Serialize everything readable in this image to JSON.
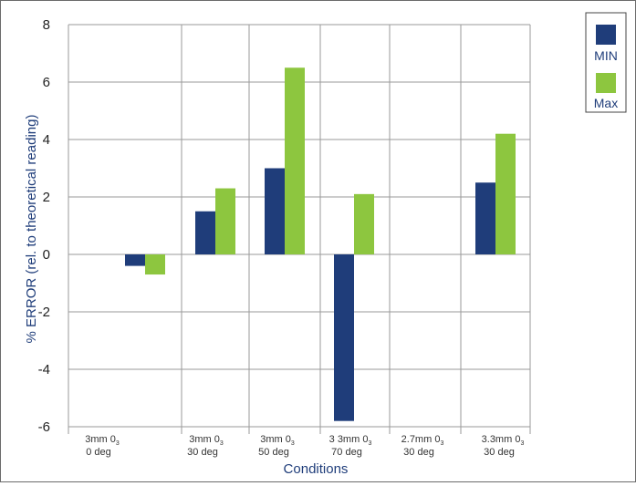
{
  "chart_data": {
    "type": "bar",
    "categories": [
      {
        "line1": "3mm 0",
        "sub": "3",
        "line2": "0 deg"
      },
      {
        "line1": "3mm 0",
        "sub": "3",
        "line2": "30 deg"
      },
      {
        "line1": "3mm 0",
        "sub": "3",
        "line2": "50 deg"
      },
      {
        "line1": "3 3mm 0",
        "sub": "3",
        "line2": "70 deg"
      },
      {
        "line1": "2.7mm 0",
        "sub": "3",
        "line2": "30 deg"
      },
      {
        "line1": "3.3mm 0",
        "sub": "3",
        "line2": "30 deg"
      }
    ],
    "series": [
      {
        "name": "MIN",
        "color": "#1f3d7a",
        "values": [
          -0.4,
          1.5,
          3.0,
          -5.8,
          0,
          2.5
        ]
      },
      {
        "name": "Max",
        "color": "#8dc63f",
        "values": [
          -0.7,
          2.3,
          6.5,
          2.1,
          0,
          4.2
        ]
      }
    ],
    "xlabel": "Conditions",
    "ylabel": "% ERROR (rel. to theoretical reading)",
    "ylim": [
      -6,
      8
    ],
    "yticks": [
      "8",
      "6",
      "4",
      "2",
      "0",
      "-2",
      "-4",
      "-6"
    ],
    "grid": true,
    "legend_position": "right"
  },
  "colors": {
    "axis_text": "#1f3d7a",
    "grid": "#9a9a9a"
  }
}
